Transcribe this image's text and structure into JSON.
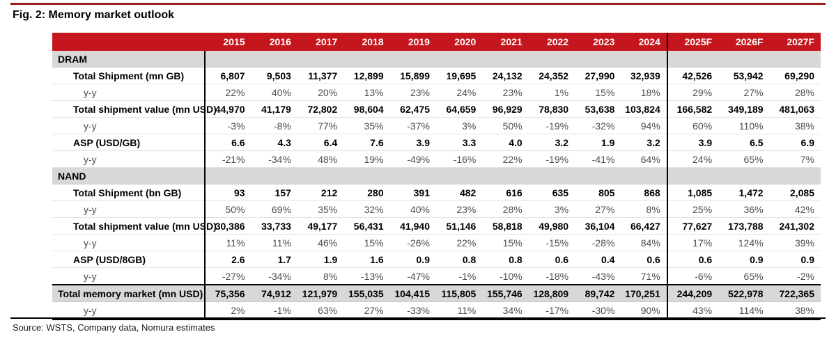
{
  "title": "Fig. 2: Memory market outlook",
  "source": "Source: WSTS, Company data, Nomura estimates",
  "colors": {
    "header_red": "#c5161d",
    "top_rule_red": "#9b1c1a",
    "section_gray": "#d8d8d8",
    "yy_text_gray": "#4d4d4d"
  },
  "chart_data": {
    "type": "table",
    "title": "Fig. 2: Memory market outlook",
    "columns": [
      "",
      "2015",
      "2016",
      "2017",
      "2018",
      "2019",
      "2020",
      "2021",
      "2022",
      "2023",
      "2024",
      "2025F",
      "2026F",
      "2027F"
    ],
    "forecast_divider_before_column": "2025F",
    "sections": [
      {
        "name": "DRAM",
        "rows": [
          {
            "label": "Total Shipment (mn GB)",
            "style": "main",
            "values": [
              "6,807",
              "9,503",
              "11,377",
              "12,899",
              "15,899",
              "19,695",
              "24,132",
              "24,352",
              "27,990",
              "32,939",
              "42,526",
              "53,942",
              "69,290"
            ]
          },
          {
            "label": "y-y",
            "style": "yy",
            "values": [
              "22%",
              "40%",
              "20%",
              "13%",
              "23%",
              "24%",
              "23%",
              "1%",
              "15%",
              "18%",
              "29%",
              "27%",
              "28%"
            ]
          },
          {
            "label": "Total shipment value (mn USD)",
            "style": "main",
            "values": [
              "44,970",
              "41,179",
              "72,802",
              "98,604",
              "62,475",
              "64,659",
              "96,929",
              "78,830",
              "53,638",
              "103,824",
              "166,582",
              "349,189",
              "481,063"
            ]
          },
          {
            "label": "y-y",
            "style": "yy",
            "values": [
              "-3%",
              "-8%",
              "77%",
              "35%",
              "-37%",
              "3%",
              "50%",
              "-19%",
              "-32%",
              "94%",
              "60%",
              "110%",
              "38%"
            ]
          },
          {
            "label": "ASP (USD/GB)",
            "style": "main",
            "values": [
              "6.6",
              "4.3",
              "6.4",
              "7.6",
              "3.9",
              "3.3",
              "4.0",
              "3.2",
              "1.9",
              "3.2",
              "3.9",
              "6.5",
              "6.9"
            ]
          },
          {
            "label": "y-y",
            "style": "yy",
            "values": [
              "-21%",
              "-34%",
              "48%",
              "19%",
              "-49%",
              "-16%",
              "22%",
              "-19%",
              "-41%",
              "64%",
              "24%",
              "65%",
              "7%"
            ]
          }
        ]
      },
      {
        "name": "NAND",
        "rows": [
          {
            "label": "Total Shipment (bn GB)",
            "style": "main",
            "values": [
              "93",
              "157",
              "212",
              "280",
              "391",
              "482",
              "616",
              "635",
              "805",
              "868",
              "1,085",
              "1,472",
              "2,085"
            ]
          },
          {
            "label": "y-y",
            "style": "yy",
            "values": [
              "50%",
              "69%",
              "35%",
              "32%",
              "40%",
              "23%",
              "28%",
              "3%",
              "27%",
              "8%",
              "25%",
              "36%",
              "42%"
            ]
          },
          {
            "label": "Total shipment value (mn USD)",
            "style": "main",
            "values": [
              "30,386",
              "33,733",
              "49,177",
              "56,431",
              "41,940",
              "51,146",
              "58,818",
              "49,980",
              "36,104",
              "66,427",
              "77,627",
              "173,788",
              "241,302"
            ]
          },
          {
            "label": "y-y",
            "style": "yy",
            "values": [
              "11%",
              "11%",
              "46%",
              "15%",
              "-26%",
              "22%",
              "15%",
              "-15%",
              "-28%",
              "84%",
              "17%",
              "124%",
              "39%"
            ]
          },
          {
            "label": "ASP (USD/8GB)",
            "style": "main",
            "values": [
              "2.6",
              "1.7",
              "1.9",
              "1.6",
              "0.9",
              "0.8",
              "0.8",
              "0.6",
              "0.4",
              "0.6",
              "0.6",
              "0.9",
              "0.9"
            ]
          },
          {
            "label": "y-y",
            "style": "yy",
            "values": [
              "-27%",
              "-34%",
              "8%",
              "-13%",
              "-47%",
              "-1%",
              "-10%",
              "-18%",
              "-43%",
              "71%",
              "-6%",
              "65%",
              "-2%"
            ]
          }
        ]
      }
    ],
    "total_rows": [
      {
        "label": "Total memory market (mn USD)",
        "style": "total",
        "values": [
          "75,356",
          "74,912",
          "121,979",
          "155,035",
          "104,415",
          "115,805",
          "155,746",
          "128,809",
          "89,742",
          "170,251",
          "244,209",
          "522,978",
          "722,365"
        ]
      },
      {
        "label": "y-y",
        "style": "yy",
        "values": [
          "2%",
          "-1%",
          "63%",
          "27%",
          "-33%",
          "11%",
          "34%",
          "-17%",
          "-30%",
          "90%",
          "43%",
          "114%",
          "38%"
        ]
      }
    ]
  }
}
